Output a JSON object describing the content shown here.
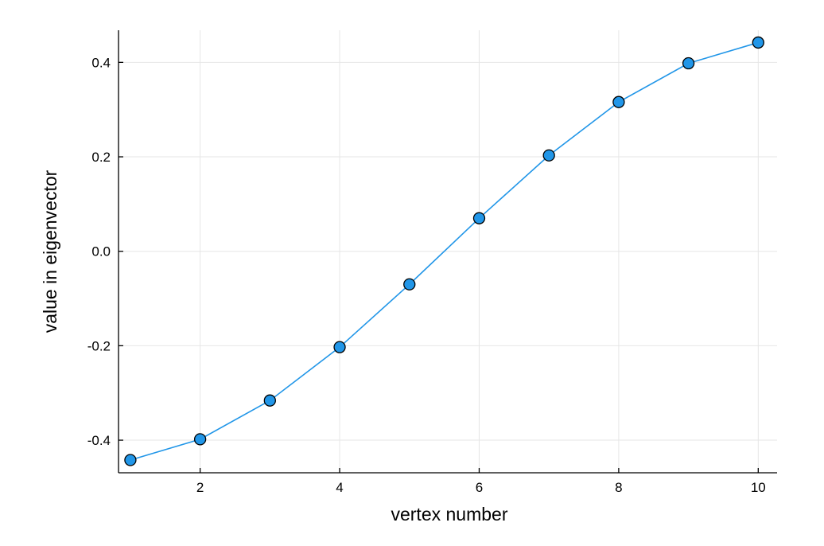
{
  "chart_data": {
    "type": "line",
    "xlabel": "vertex number",
    "ylabel": "value in eigenvector",
    "x": [
      1,
      2,
      3,
      4,
      5,
      6,
      7,
      8,
      9,
      10
    ],
    "series": [
      {
        "values": [
          -0.442,
          -0.398,
          -0.316,
          -0.203,
          -0.07,
          0.07,
          0.203,
          0.316,
          0.398,
          0.442
        ],
        "color": "#2196e8",
        "markers": true
      }
    ],
    "xlim": [
      0.83,
      10.27
    ],
    "ylim": [
      -0.469,
      0.468
    ],
    "xticks": [
      2,
      4,
      6,
      8,
      10
    ],
    "xtick_labels": [
      "2",
      "4",
      "6",
      "8",
      "10"
    ],
    "yticks": [
      -0.4,
      -0.2,
      0.0,
      0.2,
      0.4
    ],
    "ytick_labels": [
      "-0.4",
      "-0.2",
      "0.0",
      "0.2",
      "0.4"
    ],
    "grid": true,
    "legend": "none"
  }
}
